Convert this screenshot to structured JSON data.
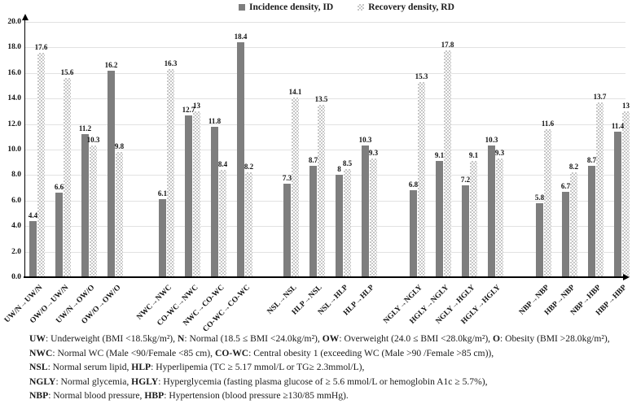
{
  "legend": {
    "incidence": "Incidence density, ID",
    "recovery": "Recovery density, RD"
  },
  "chart_data": {
    "type": "bar",
    "title": "",
    "xlabel": "",
    "ylabel": "",
    "ylim": [
      0,
      20
    ],
    "ytick_step": 2,
    "ytick_labels": [
      "20.0",
      "18.0",
      "16.0",
      "14.0",
      "12.0",
      "10.0",
      "8.0",
      "6.0",
      "4.0",
      "2.0",
      "0.0"
    ],
    "grid": true,
    "legend_position": "top",
    "group_size": 4,
    "categories": [
      "UW/N→UW/N",
      "OW/O→UW/N",
      "UW/N→OW/O",
      "OW/O→OW/O",
      "NWC→NWC",
      "CO-WC→NWC",
      "NWC→CO-WC",
      "CO-WC→CO-WC",
      "NSL→NSL",
      "HLP→NSL",
      "NSL→HLP",
      "HLP→HLP",
      "NGLY→NGLY",
      "HGLY→NGLY",
      "NGLY→HGLY",
      "HGLY→HGLY",
      "NBP→NBP",
      "HBP→NBP",
      "NBP→HBP",
      "HBP→HBP"
    ],
    "series": [
      {
        "name": "Incidence density, ID",
        "color": "#7e7e7e",
        "style": "solid",
        "values": [
          4.4,
          6.6,
          11.2,
          16.2,
          6.1,
          12.7,
          11.8,
          18.4,
          7.3,
          8.7,
          8,
          10.3,
          6.8,
          9.1,
          7.2,
          10.3,
          5.8,
          6.7,
          8.7,
          11.4
        ]
      },
      {
        "name": "Recovery density, RD",
        "color": "#c6c6c6",
        "style": "checker-pattern",
        "values": [
          17.6,
          15.6,
          10.3,
          9.8,
          16.3,
          13,
          8.4,
          8.2,
          14.1,
          13.5,
          8.5,
          9.3,
          15.3,
          17.8,
          9.1,
          9.3,
          11.6,
          8.2,
          13.7,
          13
        ]
      }
    ]
  },
  "footnotes": [
    [
      {
        "t": "UW",
        "b": true
      },
      {
        "t": ": Underweight (BMI <18.5kg/m²), ",
        "b": false
      },
      {
        "t": "N",
        "b": true
      },
      {
        "t": ": Normal (18.5 ≤ BMI <24.0kg/m²), ",
        "b": false
      },
      {
        "t": "OW",
        "b": true
      },
      {
        "t": ": Overweight (24.0 ≤ BMI <28.0kg/m²), ",
        "b": false
      },
      {
        "t": "O",
        "b": true
      },
      {
        "t": ": Obesity (BMI >28.0kg/m²),",
        "b": false
      }
    ],
    [
      {
        "t": "NWC",
        "b": true
      },
      {
        "t": ": Normal WC (Male <90/Female <85 cm), ",
        "b": false
      },
      {
        "t": "CO-WC",
        "b": true
      },
      {
        "t": ": Central obesity 1 (exceeding WC (Male >90 /Female >85 cm)),",
        "b": false
      }
    ],
    [
      {
        "t": "NSL",
        "b": true
      },
      {
        "t": ": Normal serum lipid, ",
        "b": false
      },
      {
        "t": "HLP",
        "b": true
      },
      {
        "t": ": Hyperlipemia (TC ≥ 5.17 mmol/L or TG≥ 2.3mmol/L),",
        "b": false
      }
    ],
    [
      {
        "t": "NGLY",
        "b": true
      },
      {
        "t": ": Normal glycemia, ",
        "b": false
      },
      {
        "t": "HGLY",
        "b": true
      },
      {
        "t": ": Hyperglycemia (fasting plasma glucose of ≥ 5.6 mmol/L or hemoglobin A1c ≥ 5.7%),",
        "b": false
      }
    ],
    [
      {
        "t": "NBP",
        "b": true
      },
      {
        "t": ": Normal blood pressure, ",
        "b": false
      },
      {
        "t": "HBP",
        "b": true
      },
      {
        "t": ": Hypertension (blood pressure ≥130/85 mmHg).",
        "b": false
      }
    ]
  ]
}
